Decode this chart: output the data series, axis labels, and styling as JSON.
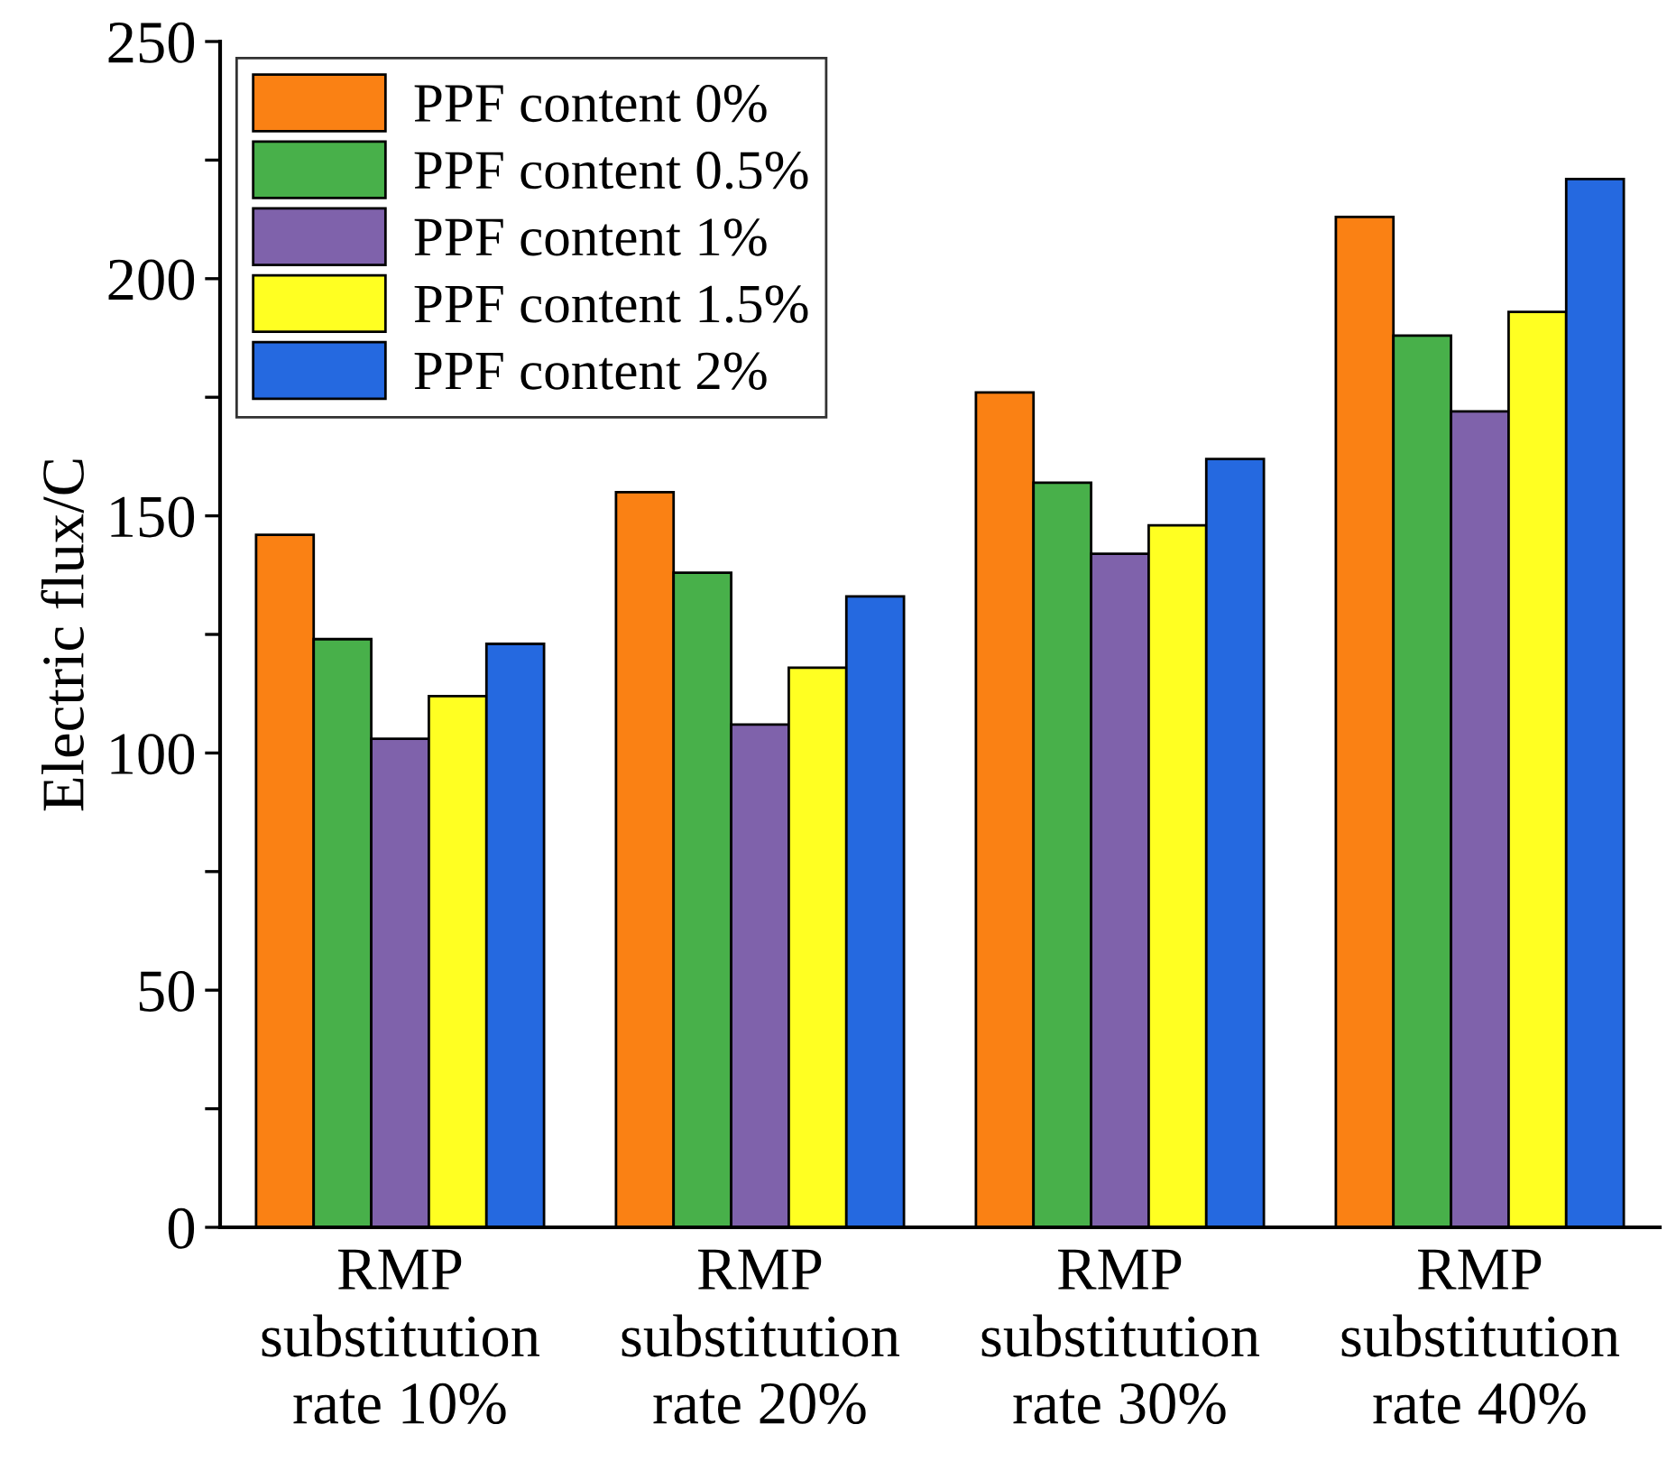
{
  "chart_data": {
    "type": "bar",
    "ylabel": "Electric flux/C",
    "categories": [
      "RMP\nsubstitution\nrate 10%",
      "RMP\nsubstitution\nrate 20%",
      "RMP\nsubstitution\nrate 30%",
      "RMP\nsubstitution\nrate 40%"
    ],
    "series": [
      {
        "name": "PPF content 0%",
        "color": "#fa8114",
        "values": [
          146,
          155,
          176,
          213
        ]
      },
      {
        "name": "PPF content 0.5%",
        "color": "#48b04a",
        "values": [
          124,
          138,
          157,
          188
        ]
      },
      {
        "name": "PPF content 1%",
        "color": "#7f62ab",
        "values": [
          103,
          106,
          142,
          172
        ]
      },
      {
        "name": "PPF content 1.5%",
        "color": "#ffff22",
        "values": [
          112,
          118,
          148,
          193
        ]
      },
      {
        "name": "PPF content 2%",
        "color": "#2569e0",
        "values": [
          123,
          133,
          162,
          221
        ]
      }
    ],
    "ylim": [
      0,
      250
    ],
    "yticks": [
      0,
      {
        "value": 25,
        "label": null
      },
      50,
      {
        "value": 75,
        "label": null
      },
      100,
      {
        "value": 125,
        "label": null
      },
      150,
      {
        "value": 175,
        "label": null
      },
      200,
      {
        "value": 225,
        "label": null
      },
      250
    ],
    "grid": false,
    "legend": "top left"
  }
}
